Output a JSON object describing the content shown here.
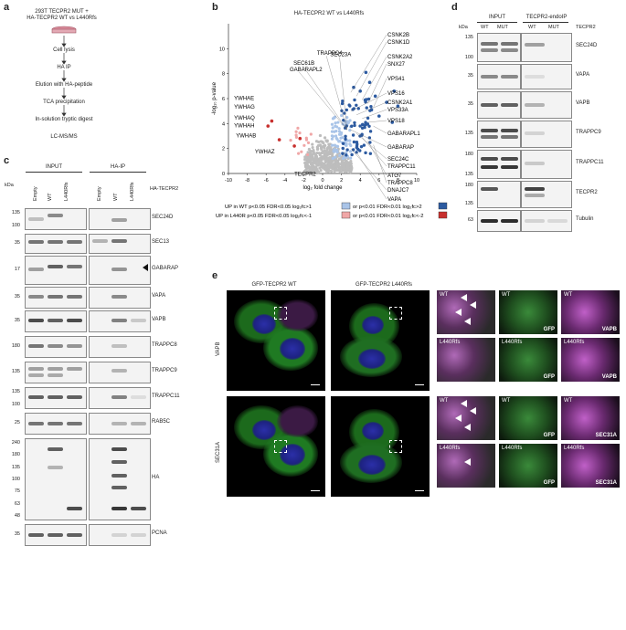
{
  "panel_a": {
    "letter": "a",
    "title_line1": "293T TECPR2 MUT +",
    "title_line2": "HA-TECPR2 WT vs L440Rfs",
    "steps": [
      "Cell lysis",
      "HA IP",
      "Elution with HA-peptide",
      "TCA precipitation",
      "In-solution tryptic digest",
      "LC-MS/MS"
    ]
  },
  "panel_b": {
    "letter": "b",
    "title": "HA-TECPR2 WT vs L440Rfs",
    "chart_data": {
      "type": "scatter",
      "title": "HA-TECPR2 WT vs L440Rfs",
      "xlabel": "log₂ fold change",
      "ylabel": "-log₁₀ p-value",
      "xlim": [
        -10,
        10
      ],
      "ylim": [
        0,
        12
      ],
      "xticks": [
        "-10",
        "-8",
        "-6",
        "-4",
        "-2",
        "0",
        "2",
        "4",
        "6",
        "8",
        "10"
      ],
      "yticks": [
        "0",
        "2",
        "4",
        "6",
        "8",
        "10"
      ],
      "labels_right": [
        "CSNK2B",
        "CSNK1D",
        "CSNK2A2",
        "SNX27",
        "VPS41",
        "VPS16",
        "CSNK2A1",
        "VPS33A",
        "VPS18",
        "GABARAPL1",
        "GABARAP",
        "SEC24C",
        "TRAPPC11",
        "ATG7",
        "TRAPPC8",
        "DNAJC7",
        "VAPA"
      ],
      "labels_left": [
        "YWHAE",
        "YWHAG",
        "YWHAQ",
        "YWHAH",
        "YWHAB",
        "YWHAZ",
        "TECPR2"
      ],
      "labels_top": [
        "TRAPPC4",
        "SEC61B",
        "GABARAPL2",
        "SEC23A"
      ],
      "legend": [
        "UP in WT p<0.05 FDR<0.05 log₂fc>1",
        "or p<0.01 FDR<0.01 log₂fc>2",
        "UP in L440R p<0.05 FDR<0.05 log₂fc<-1",
        "or p<0.01 FDR<0.01 log₂fc<-2"
      ],
      "colors": {
        "grey": "#bdbdbd",
        "lightblue": "#a9c4e8",
        "darkblue": "#2c5aa0",
        "pink": "#f0a7a7",
        "red": "#c8302e"
      }
    }
  },
  "panel_c": {
    "letter": "c",
    "input": "INPUT",
    "haip": "HA-IP",
    "kda": "kDa",
    "lanes": [
      "Empty",
      "WT",
      "L440Rfs",
      "Empty",
      "WT",
      "L440Rfs"
    ],
    "construct": "HA-TECPR2",
    "blots": [
      {
        "name": "SEC24D",
        "kda": [
          "135",
          "100"
        ]
      },
      {
        "name": "SEC13",
        "kda": [
          "35"
        ]
      },
      {
        "name": "GABARAP",
        "kda": [
          "17"
        ]
      },
      {
        "name": "VAPA",
        "kda": [
          "35"
        ]
      },
      {
        "name": "VAPB",
        "kda": [
          "35"
        ]
      },
      {
        "name": "TRAPPC8",
        "kda": [
          "180"
        ]
      },
      {
        "name": "TRAPPC9",
        "kda": [
          "135"
        ]
      },
      {
        "name": "TRAPPC11",
        "kda": [
          "135",
          "100"
        ]
      },
      {
        "name": "RAB5C",
        "kda": [
          "25"
        ]
      },
      {
        "name": "HA",
        "kda": [
          "240",
          "180",
          "135",
          "100",
          "75",
          "63",
          "48"
        ]
      },
      {
        "name": "PCNA",
        "kda": [
          "35"
        ]
      }
    ]
  },
  "panel_d": {
    "letter": "d",
    "input": "INPUT",
    "endoip": "TECPR2-endoIP",
    "kda": "kDa",
    "lanes": [
      "WT",
      "MUT",
      "WT",
      "MUT"
    ],
    "construct": "TECPR2",
    "blots": [
      {
        "name": "SEC24D",
        "kda": [
          "135",
          "100"
        ]
      },
      {
        "name": "VAPA",
        "kda": [
          "35"
        ]
      },
      {
        "name": "VAPB",
        "kda": [
          "35"
        ]
      },
      {
        "name": "TRAPPC9",
        "kda": [
          "135"
        ]
      },
      {
        "name": "TRAPPC11",
        "kda": [
          "180",
          "135"
        ]
      },
      {
        "name": "TECPR2",
        "kda": [
          "180",
          "135"
        ]
      },
      {
        "name": "Tubulin",
        "kda": [
          "63"
        ]
      }
    ]
  },
  "panel_e": {
    "letter": "e",
    "col1": "GFP-TECPR2 WT",
    "col2": "GFP-TECPR2 L440Rfs",
    "row1": "VAPB",
    "row2": "SEC31A",
    "zoom": [
      {
        "tag": "WT",
        "ch": ""
      },
      {
        "tag": "WT",
        "ch": "GFP"
      },
      {
        "tag": "WT",
        "ch": "VAPB"
      },
      {
        "tag": "L440Rfs",
        "ch": ""
      },
      {
        "tag": "L440Rfs",
        "ch": "GFP"
      },
      {
        "tag": "L440Rfs",
        "ch": "VAPB"
      },
      {
        "tag": "WT",
        "ch": ""
      },
      {
        "tag": "WT",
        "ch": "GFP"
      },
      {
        "tag": "WT",
        "ch": "SEC31A"
      },
      {
        "tag": "L440Rfs",
        "ch": ""
      },
      {
        "tag": "L440Rfs",
        "ch": "GFP"
      },
      {
        "tag": "L440Rfs",
        "ch": "SEC31A"
      }
    ]
  }
}
